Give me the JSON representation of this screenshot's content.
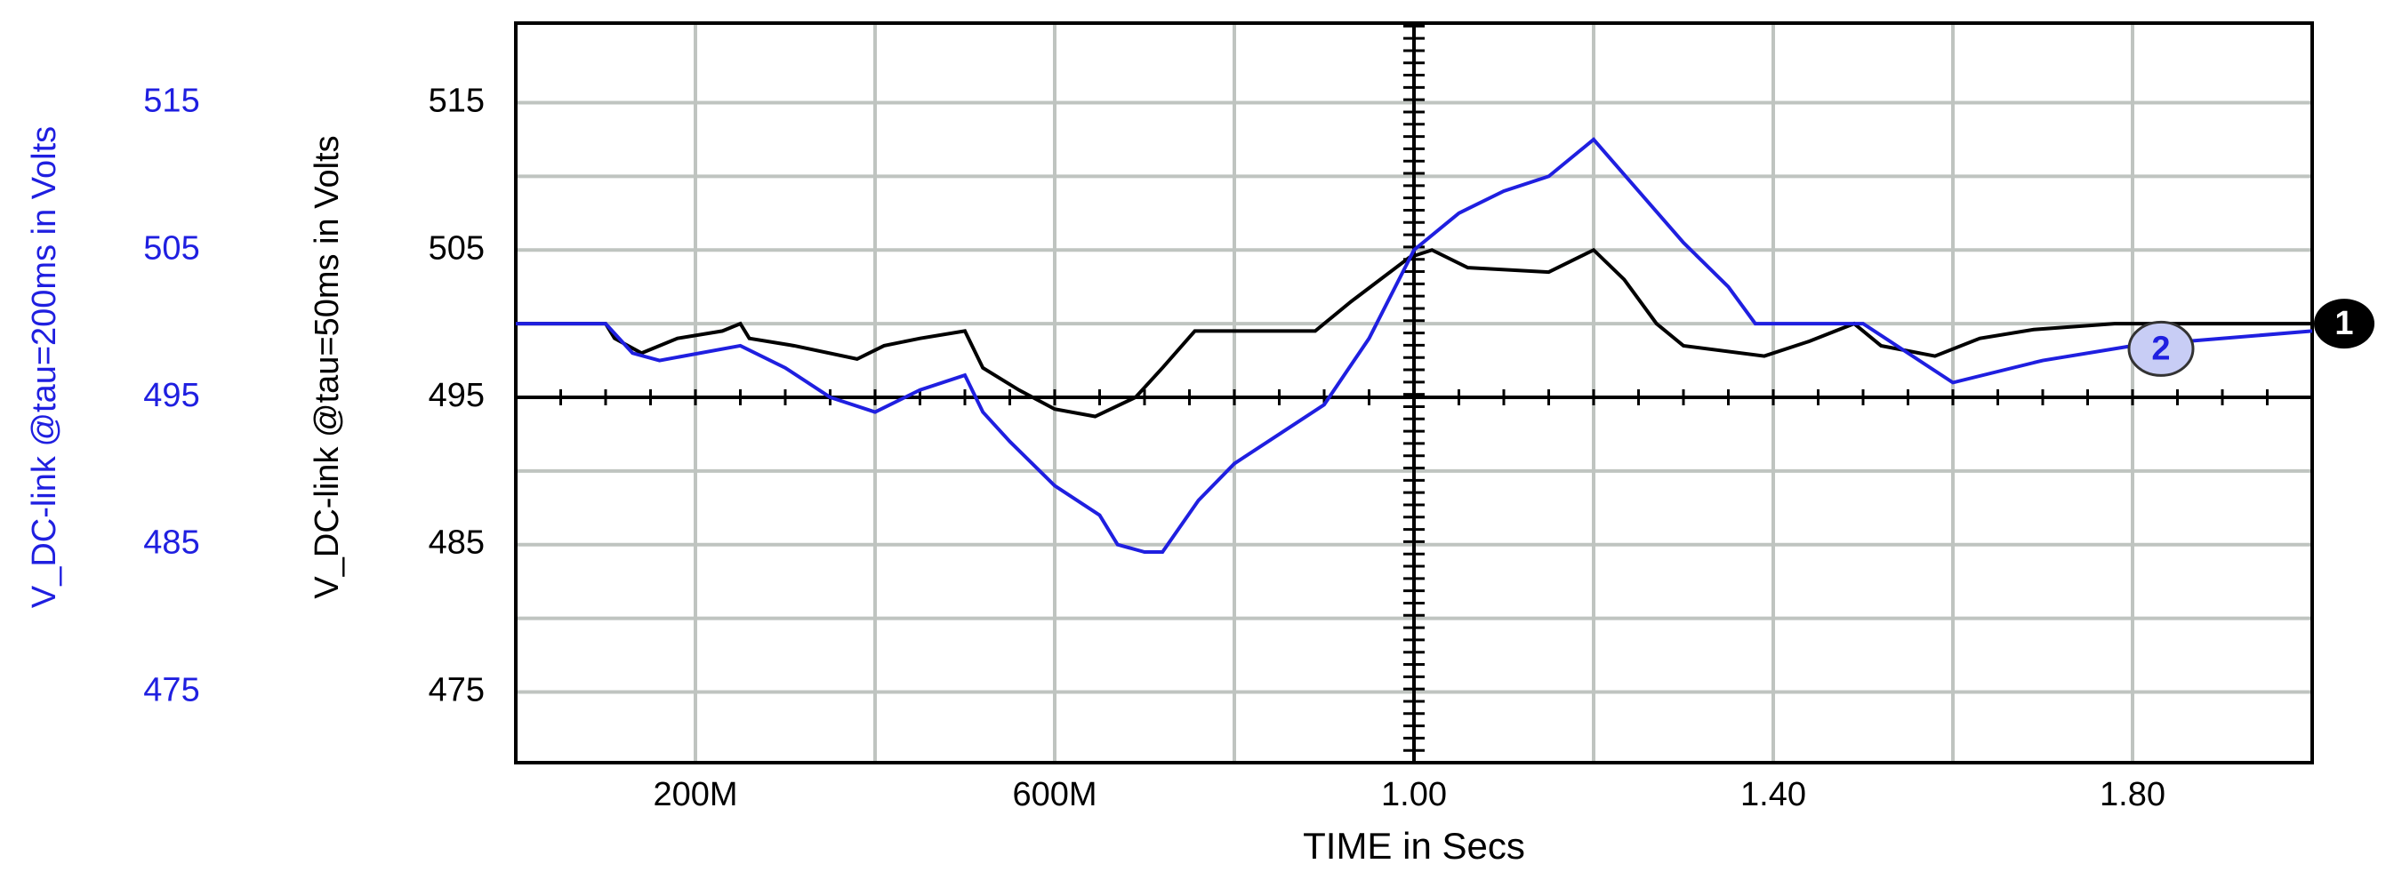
{
  "chart_data": {
    "type": "line",
    "x_label": "TIME in Secs",
    "y_label": "V_DC-link @tau=50ms in Volts",
    "y2_label": "V_DC-link @tau=200ms in Volts",
    "xlim": [
      0,
      2.0
    ],
    "xticks": [
      {
        "value": 0.2,
        "label": "200M"
      },
      {
        "value": 0.6,
        "label": "600M"
      },
      {
        "value": 1.0,
        "label": "1.00"
      },
      {
        "value": 1.4,
        "label": "1.40"
      },
      {
        "value": 1.8,
        "label": "1.80"
      }
    ],
    "xgrid": [
      0.2,
      0.4,
      0.6,
      0.8,
      1.0,
      1.2,
      1.4,
      1.6,
      1.8
    ],
    "ylim": [
      470.2,
      520.4
    ],
    "yticks": [
      475,
      485,
      495,
      505,
      515
    ],
    "y2lim": [
      470.2,
      520.4
    ],
    "y2ticks": [
      475,
      485,
      495,
      505,
      515
    ],
    "ygrid": [
      475,
      480,
      485,
      490,
      495,
      500,
      505,
      510,
      515
    ],
    "grid": true,
    "series": [
      {
        "name": "V_DC-link @tau=50ms",
        "label": "1",
        "color": "#000000",
        "x": [
          0,
          0.1,
          0.11,
          0.14,
          0.18,
          0.23,
          0.25,
          0.26,
          0.31,
          0.38,
          0.41,
          0.45,
          0.5,
          0.52,
          0.56,
          0.6,
          0.645,
          0.69,
          0.72,
          0.756,
          0.79,
          0.89,
          0.93,
          0.995,
          1.02,
          1.06,
          1.15,
          1.2,
          1.234,
          1.27,
          1.3,
          1.39,
          1.44,
          1.49,
          1.52,
          1.58,
          1.63,
          1.69,
          1.78,
          2.0
        ],
        "values": [
          500,
          500,
          499,
          498,
          499,
          499.5,
          500,
          499,
          498.5,
          497.6,
          498.5,
          499,
          499.5,
          497,
          495.5,
          494.2,
          493.7,
          495,
          497,
          499.5,
          499.5,
          499.5,
          501.5,
          504.5,
          505,
          503.8,
          503.5,
          505,
          503,
          500,
          498.5,
          497.8,
          498.8,
          500,
          498.5,
          497.8,
          499,
          499.6,
          500,
          500
        ]
      },
      {
        "name": "V_DC-link @tau=200ms",
        "label": "2",
        "color": "#1f1fe0",
        "axis": "y2",
        "x": [
          0,
          0.1,
          0.13,
          0.16,
          0.25,
          0.3,
          0.35,
          0.4,
          0.45,
          0.5,
          0.52,
          0.55,
          0.6,
          0.65,
          0.67,
          0.7,
          0.72,
          0.76,
          0.8,
          0.85,
          0.9,
          0.95,
          1.0,
          1.05,
          1.1,
          1.15,
          1.2,
          1.25,
          1.3,
          1.35,
          1.38,
          1.5,
          1.55,
          1.6,
          1.7,
          1.8,
          2.0
        ],
        "values": [
          500,
          500,
          498,
          497.5,
          498.5,
          497,
          495,
          494,
          495.5,
          496.5,
          494,
          492,
          489,
          487,
          485,
          484.5,
          484.5,
          488,
          490.5,
          492.5,
          494.5,
          499,
          505,
          507.5,
          509,
          510,
          512.5,
          509,
          505.5,
          502.5,
          500,
          500,
          498,
          496,
          497.5,
          498.5,
          499.5
        ]
      }
    ]
  }
}
